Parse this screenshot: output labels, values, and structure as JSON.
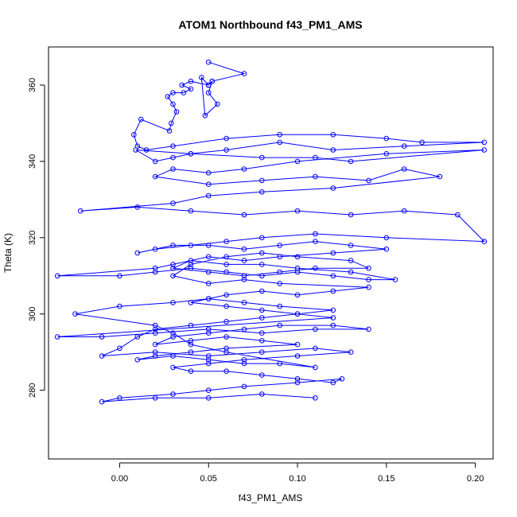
{
  "chart_data": {
    "type": "scatter",
    "title": "ATOM1 Northbound f43_PM1_AMS",
    "xlabel": "f43_PM1_AMS",
    "ylabel": "Theta (K)",
    "xlim": [
      -0.04,
      0.21
    ],
    "ylim": [
      262,
      370
    ],
    "xticks": [
      "0.00",
      "0.05",
      "0.10",
      "0.15",
      "0.20"
    ],
    "xtick_values": [
      0.0,
      0.05,
      0.1,
      0.15,
      0.2
    ],
    "yticks": [
      "280",
      "300",
      "320",
      "340",
      "360"
    ],
    "ytick_values": [
      280,
      300,
      320,
      340,
      360
    ],
    "grid": false,
    "legend": "none",
    "style": "points connected by lines (type o)",
    "color": "#0000ff",
    "series": [
      {
        "x": [
          0.05,
          0.07,
          0.052,
          0.05,
          0.055,
          0.048,
          0.046,
          0.05,
          0.052,
          0.05,
          0.04,
          0.035,
          0.04,
          0.036,
          0.03,
          0.027,
          0.03,
          0.032,
          0.029,
          0.028,
          0.012,
          0.008,
          0.01,
          0.015,
          0.03,
          0.06,
          0.09,
          0.12,
          0.15,
          0.17,
          0.205,
          0.16,
          0.12,
          0.09,
          0.06,
          0.04,
          0.03,
          0.02,
          0.009,
          0.04,
          0.08,
          0.11,
          0.13,
          0.205,
          0.15,
          0.1,
          0.07,
          0.05,
          0.03,
          0.02,
          0.05,
          0.08,
          0.11,
          0.14,
          0.16,
          0.18,
          0.12,
          0.08,
          0.05,
          0.03,
          -0.022,
          0.01,
          0.04,
          0.07,
          0.1,
          0.13,
          0.16,
          0.19,
          0.205,
          0.15,
          0.11,
          0.08,
          0.06,
          0.04,
          0.02,
          0.01,
          0.03,
          0.05,
          0.07,
          0.09,
          0.11,
          0.13,
          0.15,
          0.12,
          0.09,
          0.07,
          0.05,
          0.03,
          0.02,
          -0.035,
          0.0,
          0.02,
          0.04,
          0.06,
          0.08,
          0.1,
          0.12,
          0.14,
          0.155,
          0.13,
          0.1,
          0.08,
          0.06,
          0.04,
          0.03,
          0.05,
          0.07,
          0.09,
          0.11,
          0.14,
          0.13,
          0.1,
          0.08,
          0.06,
          0.04,
          0.03,
          0.05,
          0.07,
          0.09,
          0.14,
          0.12,
          0.1,
          0.08,
          0.06,
          0.05,
          0.04,
          0.06,
          0.08,
          0.1,
          0.12,
          -0.035,
          -0.01,
          0.02,
          0.05,
          0.08,
          0.11,
          0.14,
          0.12,
          0.09,
          0.07,
          0.05,
          0.03,
          0.02,
          0.04,
          0.06,
          0.08,
          0.1,
          0.06,
          0.04,
          0.02,
          0.01,
          0.03,
          0.05,
          0.07,
          0.09,
          0.11,
          0.06,
          0.04,
          0.03,
          0.02,
          -0.025,
          0.0,
          0.03,
          0.05,
          0.07,
          0.09,
          0.12,
          0.1,
          0.08,
          0.06,
          0.04,
          0.02,
          0.01,
          0.0,
          -0.01,
          0.02,
          0.05,
          0.08,
          0.11,
          0.13,
          0.1,
          0.07,
          0.05,
          0.03,
          0.04,
          0.06,
          0.08,
          0.1,
          0.12,
          0.125,
          0.1,
          0.07,
          0.05,
          0.03,
          0.0,
          -0.01,
          0.02,
          0.05,
          0.08,
          0.11
        ],
        "y": [
          366,
          363,
          361,
          358,
          355,
          352,
          362,
          360,
          361,
          360,
          361,
          360,
          359,
          358,
          358,
          357,
          355,
          353,
          350,
          348,
          351,
          347,
          344,
          343,
          344,
          346,
          347,
          347,
          346,
          345,
          345,
          344,
          343,
          345,
          343,
          342,
          341,
          340,
          343,
          342,
          341,
          341,
          340,
          343,
          342,
          340,
          338,
          337,
          338,
          336,
          334,
          335,
          336,
          335,
          338,
          336,
          333,
          332,
          331,
          329,
          327,
          328,
          327,
          326,
          327,
          326,
          327,
          326,
          319,
          320,
          321,
          320,
          319,
          318,
          317,
          316,
          318,
          318,
          317,
          318,
          319,
          318,
          317,
          316,
          315,
          314,
          315,
          313,
          312,
          310,
          310,
          311,
          312,
          311,
          310,
          311,
          310,
          309,
          309,
          311,
          312,
          313,
          313,
          314,
          312,
          311,
          310,
          311,
          312,
          312,
          314,
          315,
          316,
          315,
          313,
          310,
          308,
          309,
          308,
          307,
          306,
          305,
          306,
          305,
          304,
          303,
          302,
          301,
          300,
          299,
          294,
          294,
          295,
          296,
          295,
          296,
          296,
          297,
          297,
          296,
          295,
          294,
          292,
          293,
          294,
          293,
          292,
          291,
          290,
          289,
          288,
          289,
          288,
          287,
          287,
          286,
          290,
          292,
          295,
          297,
          300,
          302,
          303,
          304,
          303,
          302,
          301,
          300,
          299,
          298,
          297,
          296,
          294,
          291,
          289,
          290,
          289,
          290,
          291,
          290,
          289,
          288,
          287,
          286,
          285,
          285,
          284,
          283,
          282,
          283,
          282,
          281,
          280,
          279,
          278,
          277,
          278,
          278,
          279,
          278
        ]
      }
    ]
  }
}
